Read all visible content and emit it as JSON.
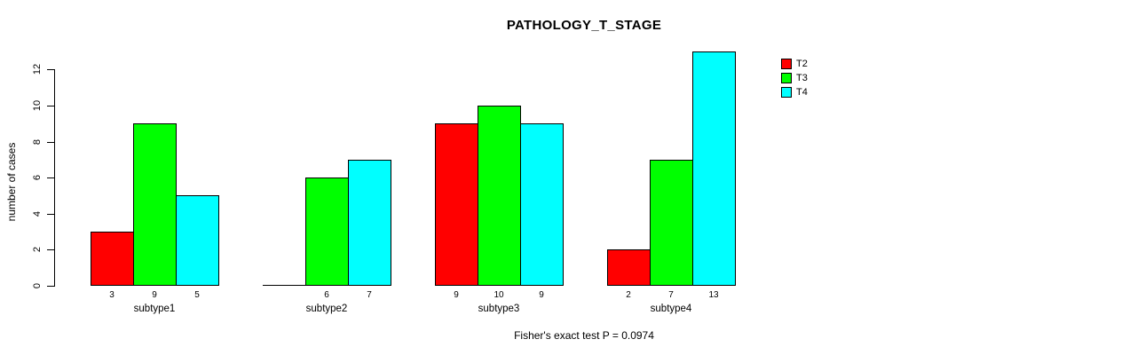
{
  "title": "PATHOLOGY_T_STAGE",
  "footer": "Fisher's exact test P = 0.0974",
  "chart_data": {
    "type": "bar",
    "title": "PATHOLOGY_T_STAGE",
    "categories": [
      "subtype1",
      "subtype2",
      "subtype3",
      "subtype4"
    ],
    "series": [
      {
        "name": "T2",
        "color": "#ff0000",
        "values": [
          3,
          0,
          9,
          2
        ]
      },
      {
        "name": "T3",
        "color": "#00ff00",
        "values": [
          9,
          6,
          10,
          7
        ]
      },
      {
        "name": "T4",
        "color": "#00ffff",
        "values": [
          5,
          7,
          9,
          13
        ]
      }
    ],
    "xlabel": "",
    "ylabel": "number of cases",
    "ylim": [
      0,
      13
    ],
    "yticks": [
      0,
      2,
      4,
      6,
      8,
      10,
      12
    ],
    "bar_value_labels": true,
    "value_labels_per_group": [
      [
        "3",
        "9",
        "5"
      ],
      [
        "",
        "6",
        "7"
      ],
      [
        "9",
        "10",
        "9"
      ],
      [
        "2",
        "7",
        "13"
      ]
    ],
    "annotation": "Fisher's exact test P = 0.0974",
    "legend_position": "top-right",
    "legend_entries": [
      "T2",
      "T3",
      "T4"
    ],
    "grid": false,
    "bar_border_color": "#000000",
    "background": "#ffffff"
  }
}
